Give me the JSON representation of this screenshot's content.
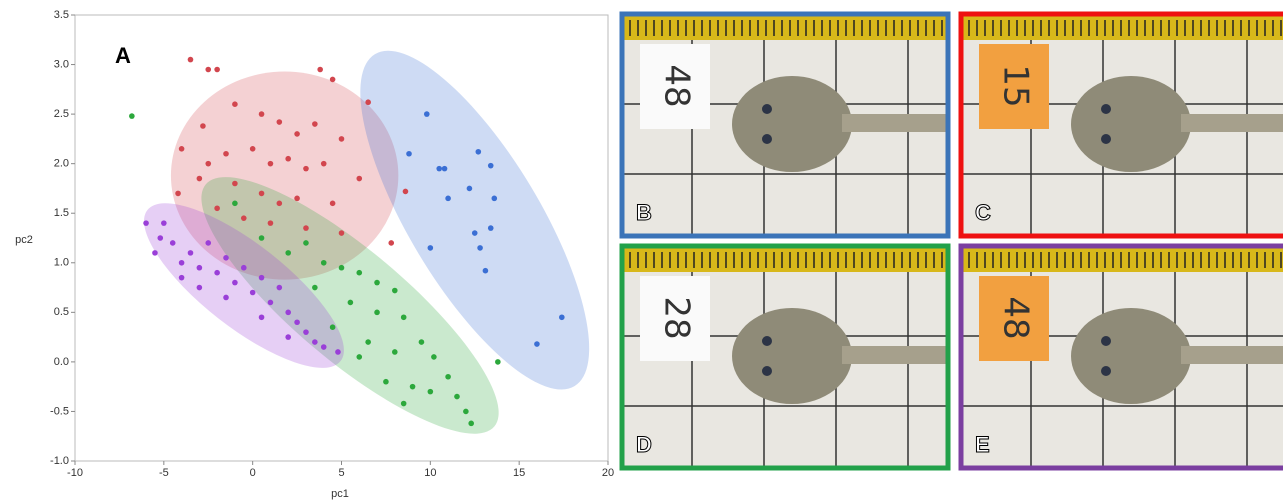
{
  "chart_data": {
    "type": "scatter",
    "panel_label": "A",
    "xlabel": "pc1",
    "ylabel": "pc2",
    "xlim": [
      -10,
      20
    ],
    "xticks": [
      -10,
      -5,
      0,
      5,
      10,
      15,
      20
    ],
    "ylim": [
      -1,
      3.5
    ],
    "yticks": [
      {
        "value": -1,
        "label": "-1.0"
      },
      -0.5,
      {
        "value": 0,
        "label": "0.0"
      },
      0.5,
      {
        "value": 1,
        "label": "1.0"
      },
      1.5,
      {
        "value": 2,
        "label": "2.0"
      },
      2.5,
      {
        "value": 3,
        "label": "3.0"
      },
      3.5
    ],
    "series": [
      {
        "color": "#d2464e",
        "ellipse": {
          "cx": 1.8,
          "cy": 1.88,
          "rx": 6.4,
          "ry": 1.05,
          "angle": 0
        },
        "x": [
          -3.5,
          -2.5,
          -2,
          3.8,
          4.5,
          6.5,
          -4,
          -2.8,
          -1,
          0.5,
          1.5,
          2.5,
          3.5,
          5,
          -2.5,
          -1.5,
          0,
          1,
          2,
          3,
          4,
          6,
          -3,
          -1,
          0.5,
          1.5,
          2.5,
          4.5,
          -2,
          -0.5,
          1,
          3,
          5,
          8.6,
          7.8,
          -4.2
        ],
        "values": [
          3.05,
          2.95,
          2.95,
          2.95,
          2.85,
          2.62,
          2.15,
          2.38,
          2.6,
          2.5,
          2.42,
          2.3,
          2.4,
          2.25,
          2.0,
          2.1,
          2.15,
          2.0,
          2.05,
          1.95,
          2.0,
          1.85,
          1.85,
          1.8,
          1.7,
          1.6,
          1.65,
          1.6,
          1.55,
          1.45,
          1.4,
          1.35,
          1.3,
          1.72,
          1.2,
          1.7
        ]
      },
      {
        "color": "#3b6fd4",
        "ellipse": {
          "cx": 12.5,
          "cy": 1.43,
          "rx": 10.9,
          "ry": 0.66,
          "angle": 59
        },
        "x": [
          9.8,
          8.8,
          10.5,
          11,
          10.8,
          12.7,
          13.4,
          13.6,
          12.2,
          13.4,
          12.5,
          12.8,
          13.1,
          10,
          16,
          17.4
        ],
        "values": [
          2.5,
          2.1,
          1.95,
          1.65,
          1.95,
          2.12,
          1.98,
          1.65,
          1.75,
          1.35,
          1.3,
          1.15,
          0.92,
          1.15,
          0.18,
          0.45
        ]
      },
      {
        "color": "#2ca83c",
        "ellipse": {
          "cx": 5.48,
          "cy": 0.57,
          "rx": 10.6,
          "ry": 0.56,
          "angle": 40
        },
        "x": [
          -6.8,
          -1,
          0.5,
          2,
          3,
          4,
          5,
          6,
          7,
          8,
          3.5,
          5.5,
          7,
          8.5,
          4.5,
          6.5,
          8,
          9.5,
          10.2,
          7.5,
          9,
          11,
          8.5,
          11.5,
          12,
          12.3,
          13.8,
          10,
          6
        ],
        "values": [
          2.48,
          1.6,
          1.25,
          1.1,
          1.2,
          1.0,
          0.95,
          0.9,
          0.8,
          0.72,
          0.75,
          0.6,
          0.5,
          0.45,
          0.35,
          0.2,
          0.1,
          0.2,
          0.05,
          -0.2,
          -0.25,
          -0.15,
          -0.42,
          -0.35,
          -0.5,
          -0.62,
          0.0,
          -0.3,
          0.05
        ]
      },
      {
        "color": "#9a3fd8",
        "ellipse": {
          "cx": -0.49,
          "cy": 0.77,
          "rx": 6.9,
          "ry": 0.42,
          "angle": 38
        },
        "x": [
          -6,
          -5.5,
          -5.2,
          -5,
          -4.5,
          -4,
          -3.5,
          -3,
          -2.5,
          -2,
          -1.5,
          -1,
          -0.5,
          0,
          0.5,
          1,
          1.5,
          2,
          2.5,
          3,
          3.5,
          4,
          4.8,
          -3,
          -1.5,
          0.5,
          2,
          -4
        ],
        "values": [
          1.4,
          1.1,
          1.25,
          1.4,
          1.2,
          1.0,
          1.1,
          0.95,
          1.2,
          0.9,
          1.05,
          0.8,
          0.95,
          0.7,
          0.85,
          0.6,
          0.75,
          0.5,
          0.4,
          0.3,
          0.2,
          0.15,
          0.1,
          0.75,
          0.65,
          0.45,
          0.25,
          0.85
        ]
      }
    ]
  },
  "photos": [
    {
      "label": "B",
      "tag": "48",
      "border": "#3b74b8"
    },
    {
      "label": "C",
      "tag": "15",
      "border": "#ee1111"
    },
    {
      "label": "D",
      "tag": "28",
      "border": "#22a14a"
    },
    {
      "label": "E",
      "tag": "48",
      "border": "#7b3fa0"
    }
  ]
}
